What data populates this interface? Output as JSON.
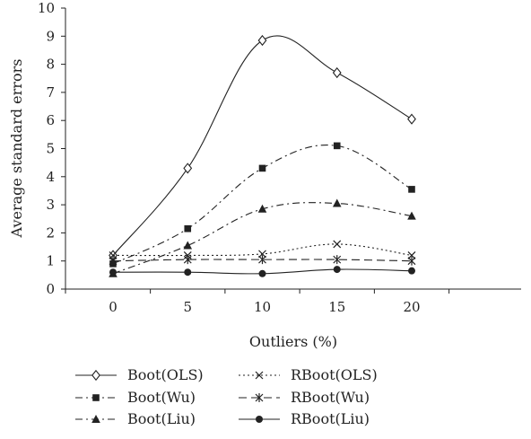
{
  "chart_data": {
    "type": "line",
    "title": "",
    "xlabel": "Outliers (%)",
    "ylabel": "Average standard errors",
    "categories": [
      "0",
      "5",
      "10",
      "15",
      "20"
    ],
    "x": [
      0,
      5,
      10,
      15,
      20
    ],
    "ylim": [
      0,
      10
    ],
    "yticks": [
      "0",
      "1",
      "2",
      "3",
      "4",
      "5",
      "6",
      "7",
      "8",
      "9",
      "10"
    ],
    "grid": false,
    "legend_position": "bottom",
    "series": [
      {
        "name": "Boot(OLS)",
        "values": [
          1.2,
          4.3,
          8.85,
          7.7,
          6.05
        ],
        "marker": "diamond-open",
        "dash": "solid"
      },
      {
        "name": "Boot(Wu)",
        "values": [
          0.9,
          2.15,
          4.3,
          5.1,
          3.55
        ],
        "marker": "square",
        "dash": "dashdot"
      },
      {
        "name": "Boot(Liu)",
        "values": [
          0.55,
          1.55,
          2.85,
          3.05,
          2.6
        ],
        "marker": "triangle",
        "dash": "dashdot"
      },
      {
        "name": "RBoot(OLS)",
        "values": [
          1.2,
          1.2,
          1.25,
          1.6,
          1.2
        ],
        "marker": "x",
        "dash": "dotted"
      },
      {
        "name": "RBoot(Wu)",
        "values": [
          1.0,
          1.05,
          1.05,
          1.05,
          1.0
        ],
        "marker": "star",
        "dash": "dashed"
      },
      {
        "name": "RBoot(Liu)",
        "values": [
          0.6,
          0.6,
          0.55,
          0.7,
          0.65
        ],
        "marker": "circle",
        "dash": "solid"
      }
    ],
    "colors": {
      "line": "#222222",
      "axis": "#222222",
      "marker_open_fill": "#ffffff"
    }
  }
}
